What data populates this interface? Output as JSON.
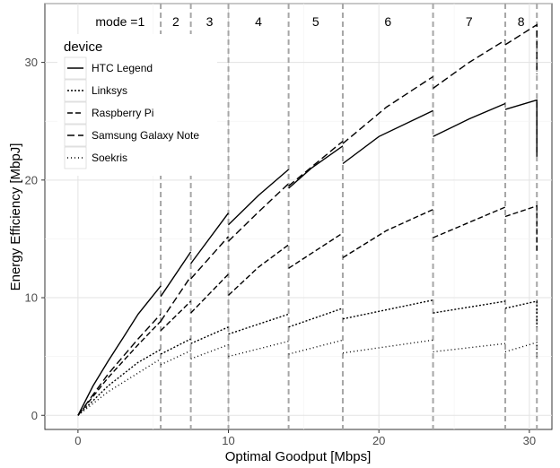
{
  "chart_data": {
    "type": "line",
    "xlabel": "Optimal Goodput [Mbps]",
    "ylabel": "Energy Efficiency [MbpJ]",
    "xlim": [
      -2.2,
      31.5
    ],
    "ylim": [
      -1.2,
      35
    ],
    "xticks": [
      0,
      10,
      20,
      30
    ],
    "yticks": [
      0,
      10,
      20,
      30
    ],
    "grid": true,
    "legend": {
      "title": "device",
      "placement": "top-left",
      "entries": [
        "HTC Legend",
        "Linksys",
        "Raspberry Pi",
        "Samsung Galaxy Note",
        "Soekris"
      ]
    },
    "mode_boundaries": [
      5.5,
      7.5,
      10.0,
      14.0,
      17.6,
      23.6,
      28.4,
      30.5
    ],
    "mode_labels": [
      {
        "text": "mode =1",
        "x": 2.8
      },
      {
        "text": "2",
        "x": 6.5
      },
      {
        "text": "3",
        "x": 8.75
      },
      {
        "text": "4",
        "x": 12.0
      },
      {
        "text": "5",
        "x": 15.8
      },
      {
        "text": "6",
        "x": 20.6
      },
      {
        "text": "7",
        "x": 26.0
      },
      {
        "text": "8",
        "x": 29.45
      }
    ],
    "series": [
      {
        "name": "HTC Legend",
        "dash": "solid",
        "segments": [
          {
            "x": [
              0,
              1,
              2,
              3,
              4,
              5.5
            ],
            "y": [
              0,
              2.5,
              4.6,
              6.6,
              8.6,
              11.0
            ]
          },
          {
            "x": [
              5.5,
              7.5
            ],
            "y": [
              10.1,
              13.9
            ]
          },
          {
            "x": [
              7.5,
              10.0
            ],
            "y": [
              12.9,
              17.2
            ]
          },
          {
            "x": [
              10.0,
              12,
              14.0
            ],
            "y": [
              16.2,
              18.7,
              20.9
            ]
          },
          {
            "x": [
              14.0,
              15.5,
              17.6
            ],
            "y": [
              19.3,
              21.0,
              22.9
            ]
          },
          {
            "x": [
              17.6,
              20,
              23.6
            ],
            "y": [
              21.4,
              23.7,
              25.9
            ]
          },
          {
            "x": [
              23.6,
              26,
              28.4
            ],
            "y": [
              23.7,
              25.2,
              26.5
            ]
          },
          {
            "x": [
              28.4,
              30.5,
              30.5
            ],
            "y": [
              26.0,
              26.8,
              22.0
            ]
          }
        ]
      },
      {
        "name": "Linksys",
        "dash": "dense-dot",
        "segments": [
          {
            "x": [
              0,
              2,
              4,
              5.5
            ],
            "y": [
              0,
              2.5,
              4.5,
              5.6
            ]
          },
          {
            "x": [
              5.5,
              7.5
            ],
            "y": [
              5.2,
              6.5
            ]
          },
          {
            "x": [
              7.5,
              10.0
            ],
            "y": [
              6.1,
              7.5
            ]
          },
          {
            "x": [
              10.0,
              14.0
            ],
            "y": [
              6.9,
              8.6
            ]
          },
          {
            "x": [
              14.0,
              17.6
            ],
            "y": [
              7.5,
              9.1
            ]
          },
          {
            "x": [
              17.6,
              23.6
            ],
            "y": [
              8.2,
              9.8
            ]
          },
          {
            "x": [
              23.6,
              28.4
            ],
            "y": [
              8.7,
              9.7
            ]
          },
          {
            "x": [
              28.4,
              30.5,
              30.5
            ],
            "y": [
              9.1,
              9.7,
              7.5
            ]
          }
        ]
      },
      {
        "name": "Raspberry Pi",
        "dash": "dash",
        "segments": [
          {
            "x": [
              0,
              2,
              4,
              5.5
            ],
            "y": [
              0,
              3.2,
              6.0,
              8.0
            ]
          },
          {
            "x": [
              5.5,
              7.5
            ],
            "y": [
              7.2,
              9.7
            ]
          },
          {
            "x": [
              7.5,
              10.0
            ],
            "y": [
              8.7,
              12.0
            ]
          },
          {
            "x": [
              10.0,
              12,
              14.0
            ],
            "y": [
              10.2,
              12.6,
              14.5
            ]
          },
          {
            "x": [
              14.0,
              17.6
            ],
            "y": [
              12.5,
              15.5
            ]
          },
          {
            "x": [
              17.6,
              20.5,
              23.6
            ],
            "y": [
              13.4,
              15.7,
              17.5
            ]
          },
          {
            "x": [
              23.6,
              28.4
            ],
            "y": [
              15.1,
              17.7
            ]
          },
          {
            "x": [
              28.4,
              30.5,
              30.5
            ],
            "y": [
              16.9,
              17.8,
              14.0
            ]
          }
        ]
      },
      {
        "name": "Samsung Galaxy Note",
        "dash": "long-dash",
        "segments": [
          {
            "x": [
              0,
              2,
              4,
              5.5
            ],
            "y": [
              0,
              3.5,
              6.5,
              8.6
            ]
          },
          {
            "x": [
              5.5,
              7.5
            ],
            "y": [
              8.0,
              11.8
            ]
          },
          {
            "x": [
              7.5,
              10.0
            ],
            "y": [
              11.6,
              15.2
            ]
          },
          {
            "x": [
              10.0,
              12,
              14.0
            ],
            "y": [
              14.8,
              17.3,
              19.7
            ]
          },
          {
            "x": [
              14.0,
              17.6
            ],
            "y": [
              19.5,
              23.3
            ]
          },
          {
            "x": [
              17.6,
              20.5,
              23.6
            ],
            "y": [
              23.1,
              26.2,
              28.8
            ]
          },
          {
            "x": [
              23.6,
              26,
              28.4
            ],
            "y": [
              27.8,
              30.0,
              31.9
            ]
          },
          {
            "x": [
              28.4,
              30.5,
              30.5
            ],
            "y": [
              31.5,
              33.2,
              29.0
            ]
          }
        ]
      },
      {
        "name": "Soekris",
        "dash": "sparse-dot",
        "segments": [
          {
            "x": [
              0,
              2,
              4,
              5.5
            ],
            "y": [
              0,
              2.0,
              3.6,
              4.8
            ]
          },
          {
            "x": [
              5.5,
              7.5
            ],
            "y": [
              4.3,
              5.5
            ]
          },
          {
            "x": [
              7.5,
              10.0
            ],
            "y": [
              4.8,
              6.0
            ]
          },
          {
            "x": [
              10.0,
              14.0
            ],
            "y": [
              5.0,
              6.3
            ]
          },
          {
            "x": [
              14.0,
              17.6
            ],
            "y": [
              5.2,
              6.4
            ]
          },
          {
            "x": [
              17.6,
              23.6
            ],
            "y": [
              5.3,
              6.4
            ]
          },
          {
            "x": [
              23.6,
              28.4
            ],
            "y": [
              5.4,
              6.1
            ]
          },
          {
            "x": [
              28.4,
              30.5,
              30.5
            ],
            "y": [
              5.4,
              6.2,
              5.0
            ]
          }
        ]
      }
    ]
  }
}
